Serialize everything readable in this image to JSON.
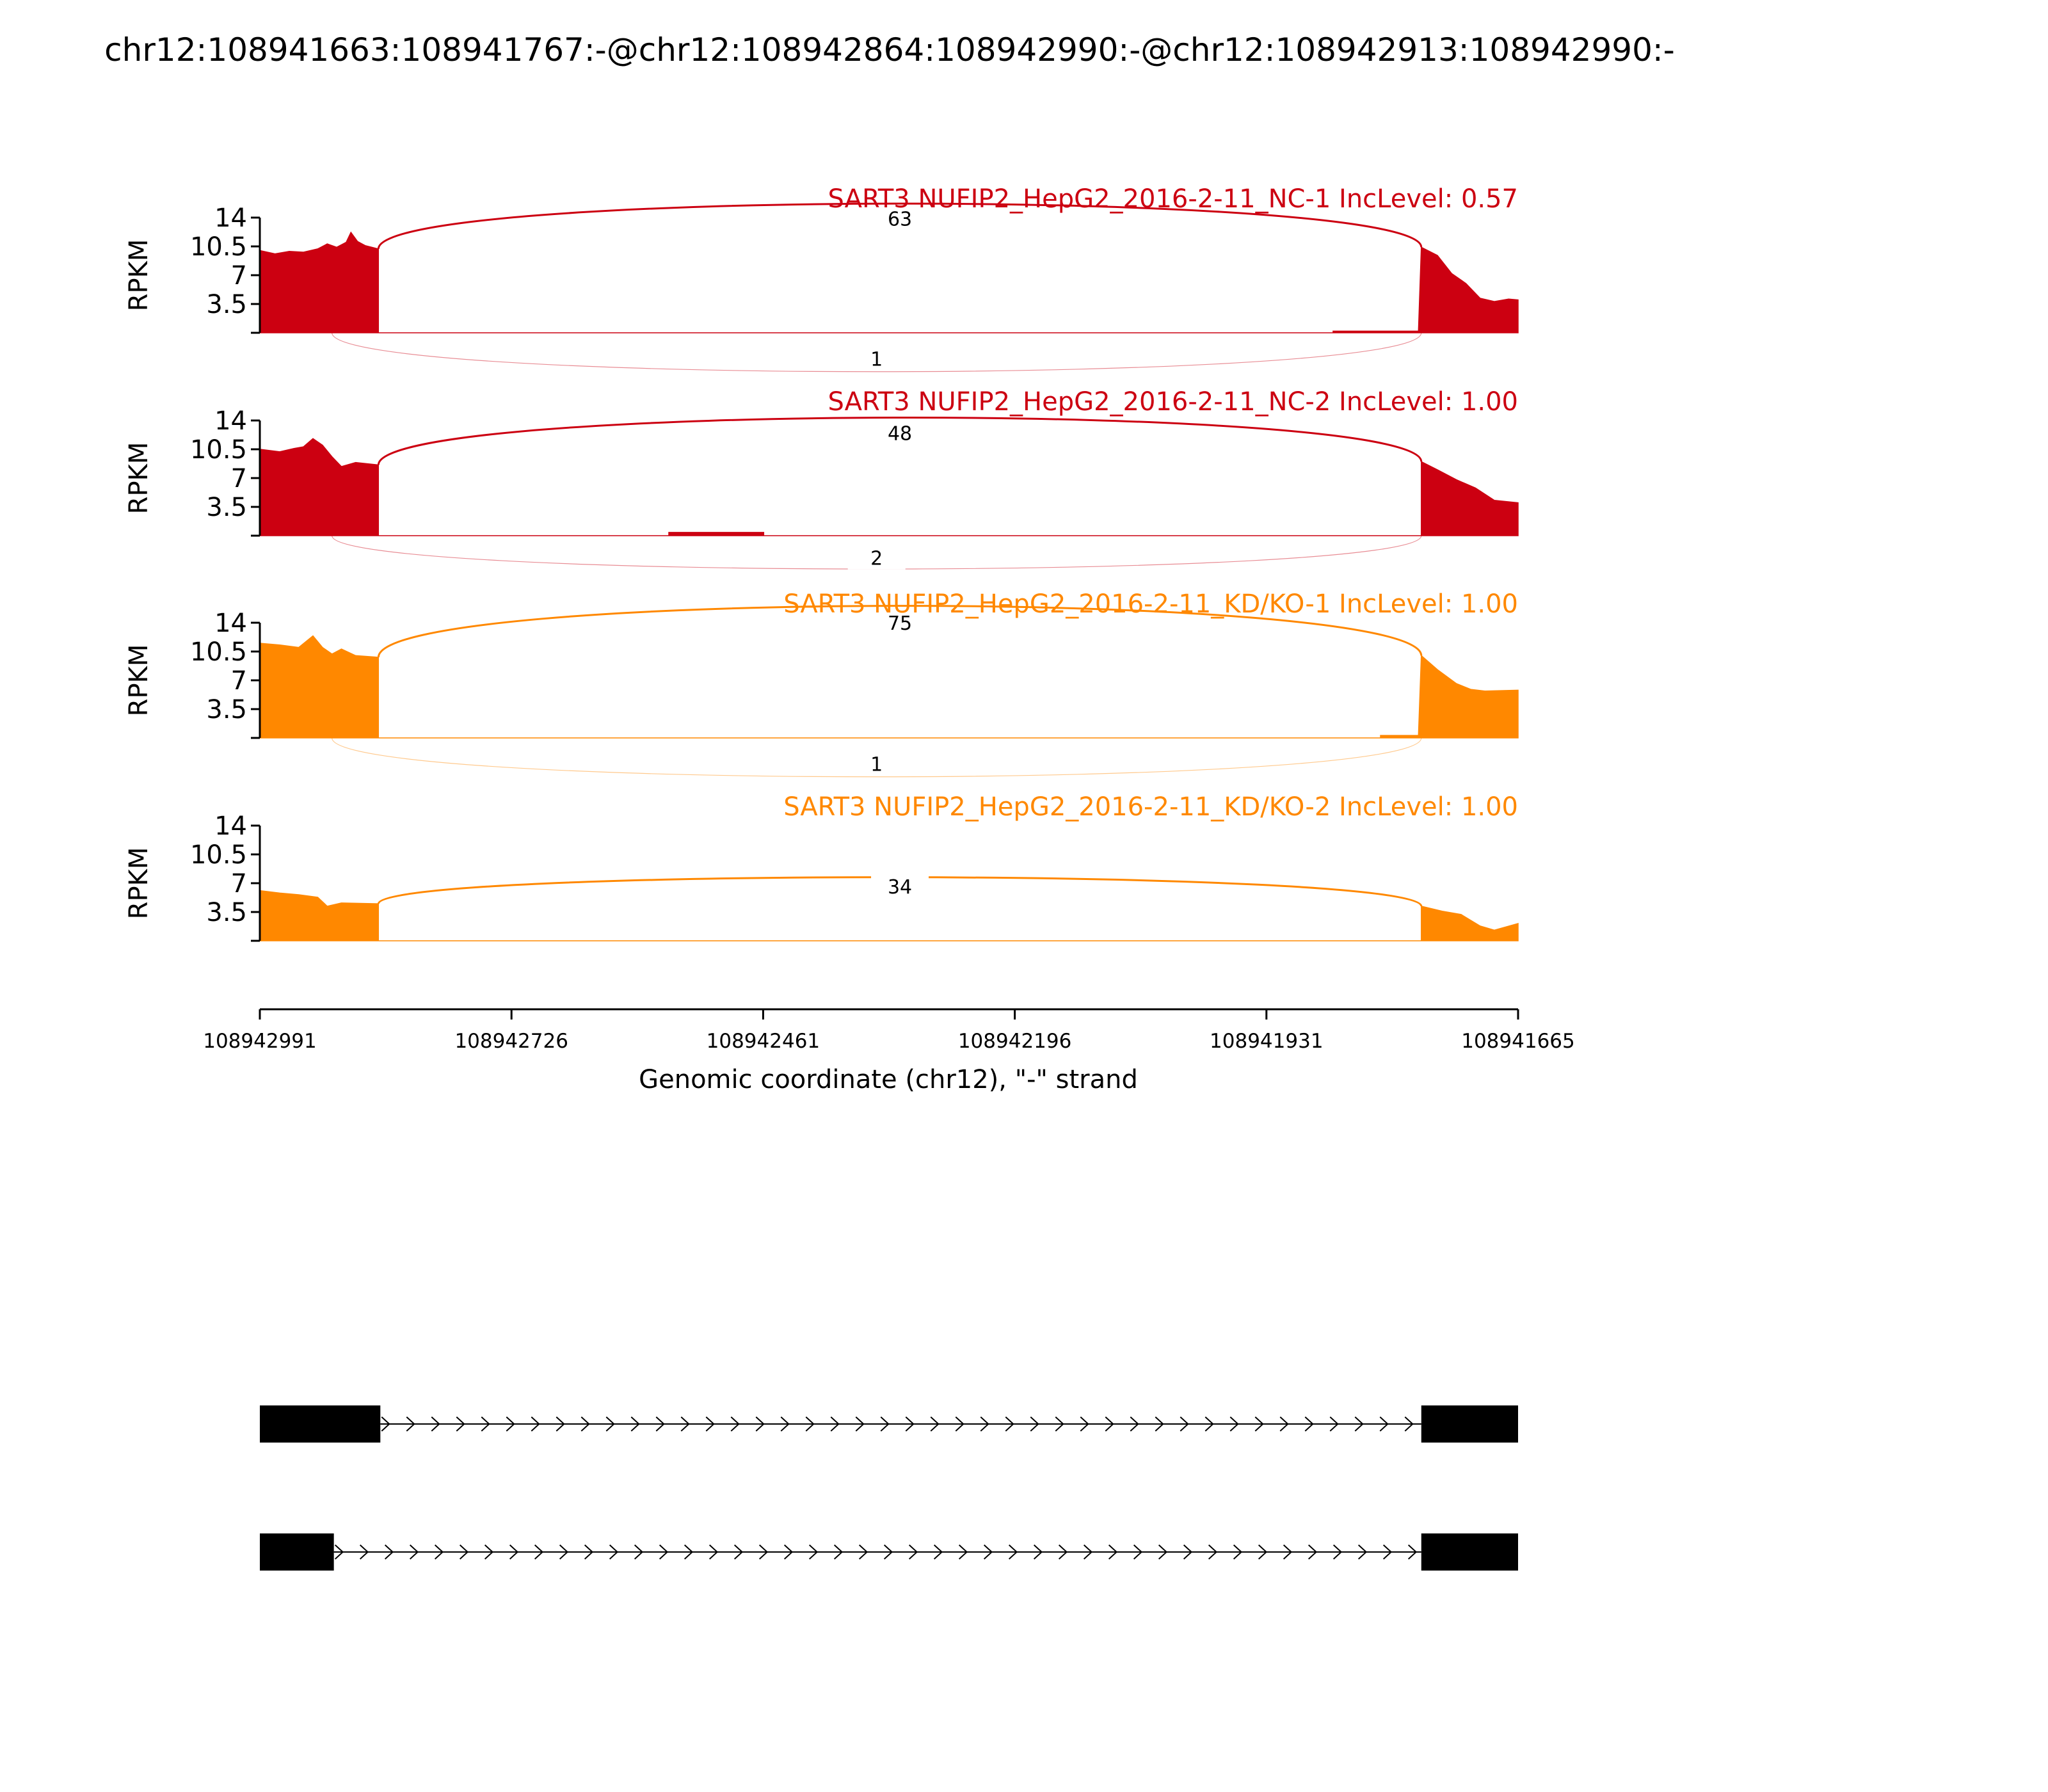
{
  "chart_data": {
    "type": "area",
    "chart_kind": "sashimi",
    "title": "chr12:108941663:108941767:-@chr12:108942864:108942990:-@chr12:108942913:108942990:-",
    "xlabel": "Genomic coordinate (chr12), \"-\" strand",
    "ylabel": "RPKM",
    "x_reversed": true,
    "xlim": [
      108942991,
      108941665
    ],
    "x_ticks": [
      "108942991",
      "108942726",
      "108942461",
      "108942196",
      "108941931",
      "108941665"
    ],
    "ylim": [
      0,
      14
    ],
    "y_ticks": [
      "14",
      "10.5",
      "7",
      "3.5"
    ],
    "grid": false,
    "exons": [
      {
        "start": 108942991,
        "end": 108942865
      },
      {
        "start": 108941767,
        "end": 108941665
      }
    ],
    "panels": [
      {
        "label": "SART3 NUFIP2_HepG2_2016-2-11_NC-1 IncLevel: 0.57",
        "color": "#cc0011",
        "coverage": [
          [
            108942991,
            10.0
          ],
          [
            108942975,
            9.6
          ],
          [
            108942960,
            9.9
          ],
          [
            108942945,
            9.8
          ],
          [
            108942930,
            10.2
          ],
          [
            108942920,
            10.8
          ],
          [
            108942910,
            10.4
          ],
          [
            108942900,
            11.0
          ],
          [
            108942895,
            12.2
          ],
          [
            108942888,
            11.1
          ],
          [
            108942880,
            10.6
          ],
          [
            108942866,
            10.2
          ],
          [
            108941860,
            0.2
          ],
          [
            108941770,
            0.2
          ],
          [
            108941767,
            10.4
          ],
          [
            108941750,
            9.4
          ],
          [
            108941735,
            7.2
          ],
          [
            108941720,
            6.0
          ],
          [
            108941705,
            4.2
          ],
          [
            108941690,
            3.8
          ],
          [
            108941675,
            4.1
          ],
          [
            108941665,
            4.0
          ]
        ],
        "junctions": [
          {
            "count": "63",
            "start": 108942866,
            "end": 108941767,
            "side": "above",
            "peak": 13.9
          },
          {
            "count": "1",
            "start": 108942915,
            "end": 108941767,
            "side": "below",
            "depth": 3.5
          }
        ]
      },
      {
        "label": "SART3 NUFIP2_HepG2_2016-2-11_NC-2 IncLevel: 1.00",
        "color": "#cc0011",
        "coverage": [
          [
            108942991,
            10.5
          ],
          [
            108942970,
            10.2
          ],
          [
            108942955,
            10.6
          ],
          [
            108942945,
            10.8
          ],
          [
            108942935,
            11.8
          ],
          [
            108942925,
            11.0
          ],
          [
            108942915,
            9.6
          ],
          [
            108942905,
            8.4
          ],
          [
            108942890,
            8.9
          ],
          [
            108942866,
            8.6
          ],
          [
            108942560,
            0.4
          ],
          [
            108942460,
            0.4
          ],
          [
            108941767,
            9.0
          ],
          [
            108941750,
            8.0
          ],
          [
            108941730,
            6.8
          ],
          [
            108941710,
            5.8
          ],
          [
            108941690,
            4.3
          ],
          [
            108941665,
            4.0
          ]
        ],
        "junctions": [
          {
            "count": "48",
            "start": 108942866,
            "end": 108941767,
            "side": "above",
            "peak": 12.5
          },
          {
            "count": "2",
            "start": 108942915,
            "end": 108941767,
            "side": "below",
            "depth": 3.0
          }
        ]
      },
      {
        "label": "SART3 NUFIP2_HepG2_2016-2-11_KD/KO-1 IncLevel: 1.00",
        "color": "#ff8800",
        "coverage": [
          [
            108942991,
            11.5
          ],
          [
            108942970,
            11.3
          ],
          [
            108942950,
            11.0
          ],
          [
            108942935,
            12.4
          ],
          [
            108942925,
            11.0
          ],
          [
            108942915,
            10.2
          ],
          [
            108942905,
            10.8
          ],
          [
            108942890,
            10.0
          ],
          [
            108942866,
            9.8
          ],
          [
            108941810,
            0.3
          ],
          [
            108941770,
            0.3
          ],
          [
            108941767,
            10.0
          ],
          [
            108941750,
            8.3
          ],
          [
            108941730,
            6.6
          ],
          [
            108941715,
            5.9
          ],
          [
            108941700,
            5.7
          ],
          [
            108941665,
            5.8
          ]
        ],
        "junctions": [
          {
            "count": "75",
            "start": 108942866,
            "end": 108941767,
            "side": "above",
            "peak": 14.0
          },
          {
            "count": "1",
            "start": 108942915,
            "end": 108941767,
            "side": "below",
            "depth": 3.5
          }
        ]
      },
      {
        "label": "SART3 NUFIP2_HepG2_2016-2-11_KD/KO-2 IncLevel: 1.00",
        "color": "#ff8800",
        "coverage": [
          [
            108942991,
            6.1
          ],
          [
            108942970,
            5.8
          ],
          [
            108942950,
            5.6
          ],
          [
            108942930,
            5.3
          ],
          [
            108942920,
            4.2
          ],
          [
            108942905,
            4.6
          ],
          [
            108942866,
            4.5
          ],
          [
            108941767,
            4.2
          ],
          [
            108941745,
            3.6
          ],
          [
            108941725,
            3.2
          ],
          [
            108941705,
            1.8
          ],
          [
            108941690,
            1.3
          ],
          [
            108941665,
            2.1
          ]
        ],
        "junctions": [
          {
            "count": "34",
            "start": 108942866,
            "end": 108941767,
            "side": "above",
            "peak": 6.6
          }
        ]
      }
    ],
    "isoforms": [
      {
        "exons": [
          {
            "start": 108942991,
            "end": 108942864
          },
          {
            "start": 108941767,
            "end": 108941663
          }
        ]
      },
      {
        "exons": [
          {
            "start": 108942991,
            "end": 108942913
          },
          {
            "start": 108941767,
            "end": 108941663
          }
        ]
      }
    ]
  }
}
